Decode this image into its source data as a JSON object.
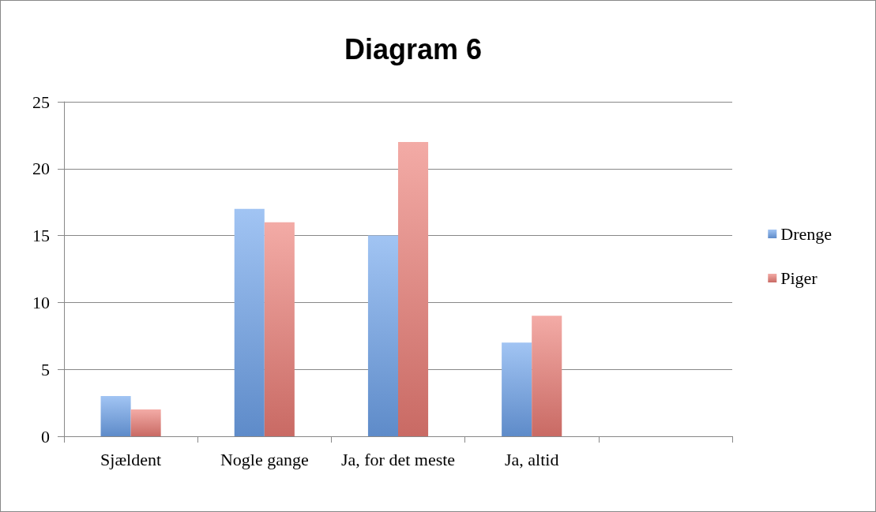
{
  "chart_data": {
    "type": "bar",
    "title": "Diagram 6",
    "categories": [
      "Sjældent",
      "Nogle gange",
      "Ja, for det meste",
      "Ja, altid",
      null
    ],
    "series": [
      {
        "name": "Drenge",
        "color": "#6ea4ec",
        "values": [
          3,
          17,
          15,
          7,
          null
        ]
      },
      {
        "name": "Piger",
        "color": "#ec7d76",
        "values": [
          2,
          16,
          22,
          9,
          null
        ]
      }
    ],
    "ylim": [
      0,
      25
    ],
    "yticks": [
      0,
      5,
      10,
      15,
      20,
      25
    ],
    "grid": "y",
    "legend": "right"
  }
}
